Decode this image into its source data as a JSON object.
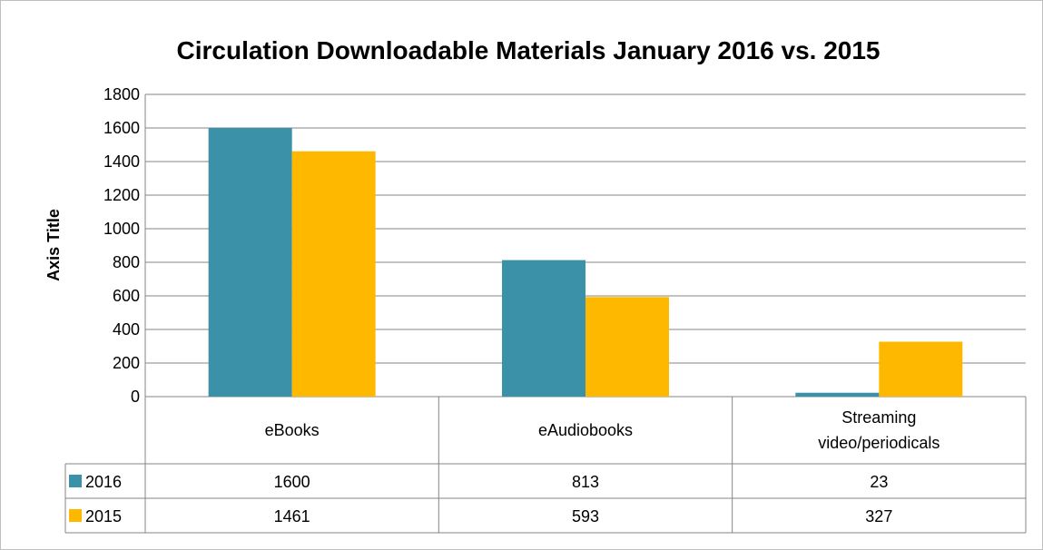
{
  "chart_data": {
    "type": "bar",
    "title": "Circulation Downloadable Materials January 2016 vs. 2015",
    "ylabel": "Axis Title",
    "xlabel": "",
    "ylim": [
      0,
      1800
    ],
    "ytick_step": 200,
    "yticks": [
      "0",
      "200",
      "400",
      "600",
      "800",
      "1000",
      "1200",
      "1400",
      "1600",
      "1800"
    ],
    "grid": true,
    "legend_placement": "data-table",
    "categories": [
      {
        "lines": [
          "eBooks"
        ]
      },
      {
        "lines": [
          "eAudiobooks"
        ]
      },
      {
        "lines": [
          "Streaming",
          "video/periodicals"
        ]
      }
    ],
    "series": [
      {
        "name": "2016",
        "color": "#3a91a8",
        "values": [
          1600,
          813,
          23
        ]
      },
      {
        "name": "2015",
        "color": "#ffb800",
        "values": [
          1461,
          593,
          327
        ]
      }
    ]
  }
}
